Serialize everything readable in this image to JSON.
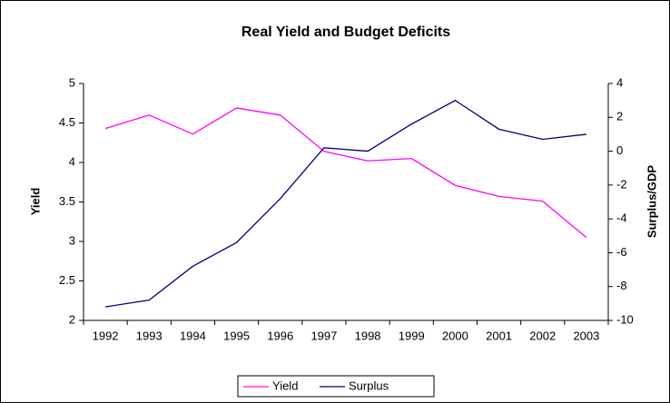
{
  "chart_data": {
    "type": "line",
    "title": "Real Yield and Budget Deficits",
    "y_label": "Yield",
    "y2_label": "Surplus/GDP",
    "categories": [
      "1992",
      "1993",
      "1994",
      "1995",
      "1996",
      "1997",
      "1998",
      "1999",
      "2000",
      "2001",
      "2002",
      "2003"
    ],
    "series": [
      {
        "name": "Yield",
        "color": "#ff00ff",
        "values": [
          4.43,
          4.6,
          4.36,
          4.69,
          4.6,
          4.14,
          4.02,
          4.05,
          3.71,
          3.57,
          3.51,
          3.05
        ]
      },
      {
        "name": "Surplus",
        "color": "#000080",
        "axis": "y2",
        "values": [
          -9.2,
          -8.8,
          -6.8,
          -5.4,
          -2.8,
          0.2,
          0,
          1.6,
          3.0,
          1.3,
          0.7,
          1.0
        ]
      }
    ],
    "ylim": [
      2,
      5
    ],
    "yticks": [
      2,
      2.5,
      3,
      3.5,
      4,
      4.5,
      5
    ],
    "y2lim": [
      -10,
      4
    ],
    "y2ticks": [
      -10,
      -8,
      -6,
      -4,
      -2,
      0,
      2,
      4
    ],
    "legend": "bottom",
    "grid": false
  }
}
